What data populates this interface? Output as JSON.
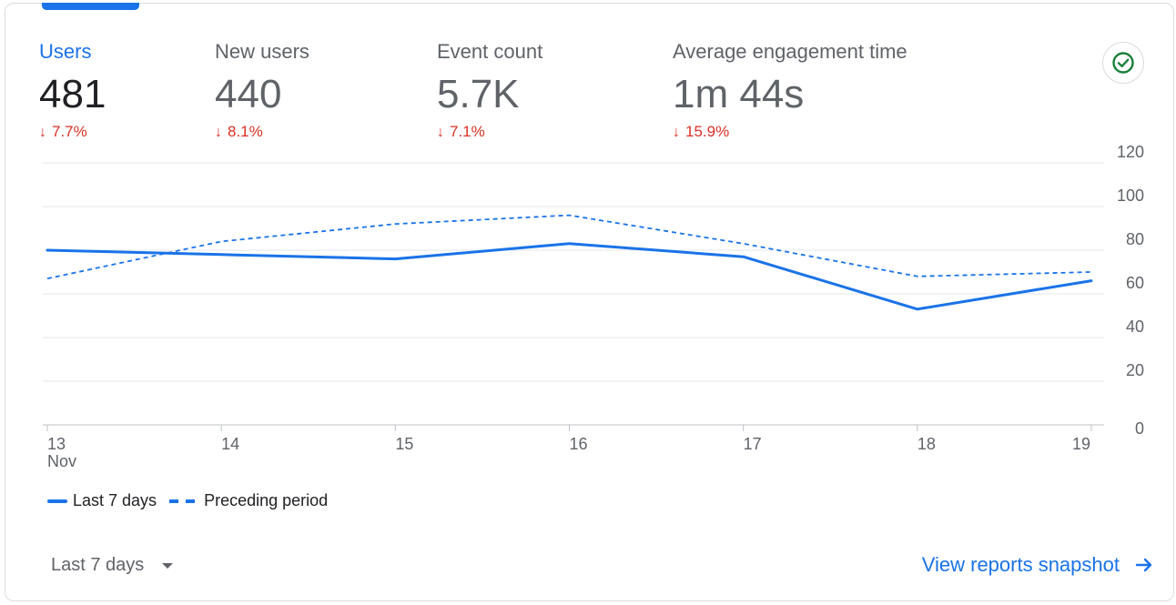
{
  "metrics": [
    {
      "label": "Users",
      "value": "481",
      "change": "7.7%",
      "active": true
    },
    {
      "label": "New users",
      "value": "440",
      "change": "8.1%",
      "active": false
    },
    {
      "label": "Event count",
      "value": "5.7K",
      "change": "7.1%",
      "active": false
    },
    {
      "label": "Average engagement time",
      "value": "1m 44s",
      "change": "15.9%",
      "active": false
    }
  ],
  "icons": {
    "change_arrow": "arrow-down-icon",
    "status": "check-circle-icon",
    "link_arrow": "arrow-right-icon",
    "dropdown": "caret-down-icon"
  },
  "colors": {
    "accent": "#1a73e8",
    "negative": "#d93025",
    "status_ok": "#188038"
  },
  "chart_data": {
    "type": "line",
    "x": [
      "13",
      "14",
      "15",
      "16",
      "17",
      "18",
      "19"
    ],
    "x_sublabels": [
      "Nov",
      "",
      "",
      "",
      "",
      "",
      ""
    ],
    "y_ticks": [
      0,
      20,
      40,
      60,
      80,
      100,
      120
    ],
    "ylim": [
      0,
      120
    ],
    "y_axis_position": "right",
    "grid": true,
    "legend_position": "bottom-left",
    "series": [
      {
        "name": "Last 7 days",
        "style": "solid",
        "values": [
          80,
          78,
          76,
          83,
          77,
          53,
          66
        ]
      },
      {
        "name": "Preceding period",
        "style": "dashed",
        "values": [
          67,
          84,
          92,
          96,
          83,
          68,
          70
        ]
      }
    ]
  },
  "footer": {
    "range_label": "Last 7 days",
    "snapshot_link": "View reports snapshot"
  }
}
